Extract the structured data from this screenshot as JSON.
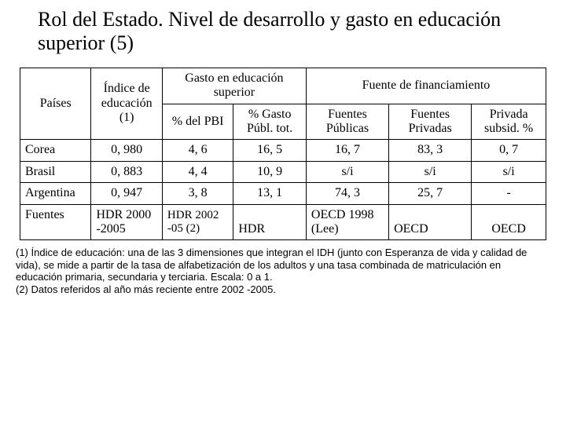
{
  "title": "Rol del Estado. Nivel de desarrollo y gasto en educación superior (5)",
  "table": {
    "group_headers": {
      "gasto": "Gasto en educación superior",
      "fuente": "Fuente de financiamiento"
    },
    "columns": {
      "paises": "Países",
      "indice": "Índice de educación (1)",
      "pbi": "% del PBI",
      "gasto_publ": "% Gasto Públ. tot.",
      "publicas": "Fuentes Públicas",
      "privadas": "Fuentes Privadas",
      "privada_subsid": "Privada subsid. %"
    },
    "rows": [
      {
        "pais": "Corea",
        "indice": "0, 980",
        "pbi": "4, 6",
        "gasto_publ": "16, 5",
        "publicas": "16, 7",
        "privadas": "83, 3",
        "subsid": "0, 7"
      },
      {
        "pais": "Brasil",
        "indice": "0, 883",
        "pbi": "4, 4",
        "gasto_publ": "10, 9",
        "publicas": "s/i",
        "privadas": "s/i",
        "subsid": "s/i"
      },
      {
        "pais": "Argentina",
        "indice": "0, 947",
        "pbi": "3, 8",
        "gasto_publ": "13, 1",
        "publicas": "74, 3",
        "privadas": "25, 7",
        "subsid": "-"
      }
    ],
    "fuentes_row": {
      "label": "Fuentes",
      "indice": "HDR 2000 -2005",
      "pbi": "HDR 2002 -05 (2)",
      "gasto_publ": "HDR",
      "publicas": "OECD 1998 (Lee)",
      "privadas": "OECD",
      "subsid": "OECD"
    }
  },
  "footnotes": {
    "n1": "(1) Índice de educación: una de las 3 dimensiones que integran el IDH (junto con Esperanza de vida y calidad de vida), se mide a partir de la tasa de alfabetización de los adultos y una tasa combinada de matriculación en educación primaria, secundaria y terciaria. Escala: 0 a 1.",
    "n2": "(2) Datos referidos al año más reciente entre 2002 -2005."
  },
  "style": {
    "background_color": "#ffffff",
    "text_color": "#000000",
    "border_color": "#000000",
    "title_fontsize": 26,
    "cell_fontsize": 16,
    "footnote_fontsize": 13,
    "title_font": "Times New Roman",
    "table_font": "Times New Roman",
    "footnote_font": "Arial"
  }
}
